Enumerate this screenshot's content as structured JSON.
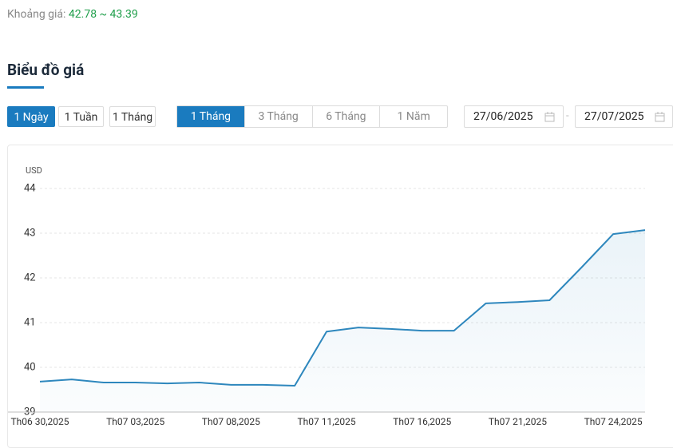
{
  "price_range": {
    "label": "Khoảng giá:",
    "value": "42.78 ~ 43.39"
  },
  "section_title": "Biểu đồ giá",
  "interval_buttons": [
    "1 Ngày",
    "1 Tuần",
    "1 Tháng"
  ],
  "period_buttons": [
    "1 Tháng",
    "3 Tháng",
    "6 Tháng",
    "1 Năm"
  ],
  "date_from": "27/06/2025",
  "date_to": "27/07/2025",
  "chart_data": {
    "type": "line",
    "y_label": "USD",
    "categories": [
      "Th06 30,2025",
      null,
      null,
      "Th07 03,2025",
      null,
      null,
      "Th07 08,2025",
      null,
      null,
      "Th07 11,2025",
      null,
      null,
      "Th07 16,2025",
      null,
      null,
      "Th07 21,2025",
      null,
      null,
      "Th07 24,2025",
      null
    ],
    "series": [
      {
        "color": "#2e87bd",
        "values": [
          39.68,
          39.73,
          39.66,
          39.66,
          39.64,
          39.66,
          39.61,
          39.61,
          39.59,
          40.8,
          40.89,
          40.86,
          40.82,
          40.82,
          41.43,
          41.46,
          41.5,
          42.23,
          42.98,
          43.07
        ]
      }
    ],
    "ylim": [
      39,
      44
    ],
    "yticks": [
      39,
      40,
      41,
      42,
      43,
      44
    ],
    "grid": true
  }
}
